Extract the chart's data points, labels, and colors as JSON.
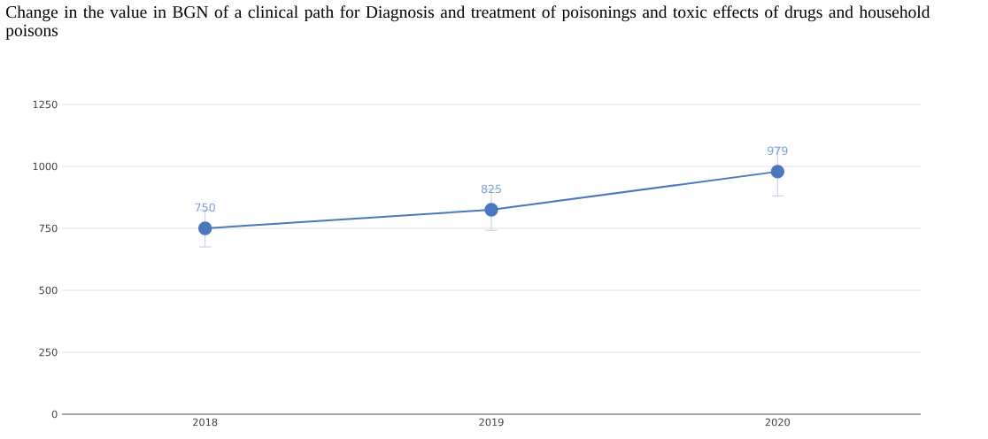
{
  "chart_data": {
    "type": "line",
    "title": "Change in the value in BGN of a clinical path for Diagnosis and treatment of poisonings and toxic effects of drugs and household poisons",
    "categories": [
      "2018",
      "2019",
      "2020"
    ],
    "series": [
      {
        "color": "#4a78bd",
        "values": [
          750,
          825,
          979
        ],
        "errors": [
          75,
          83,
          98
        ]
      }
    ],
    "ylim": [
      0,
      1250
    ],
    "yticks": [
      0,
      250,
      500,
      750,
      1000,
      1250
    ],
    "grid": "y",
    "data_labels": true,
    "marker": "circle",
    "line_style": "solid",
    "legend": false
  }
}
